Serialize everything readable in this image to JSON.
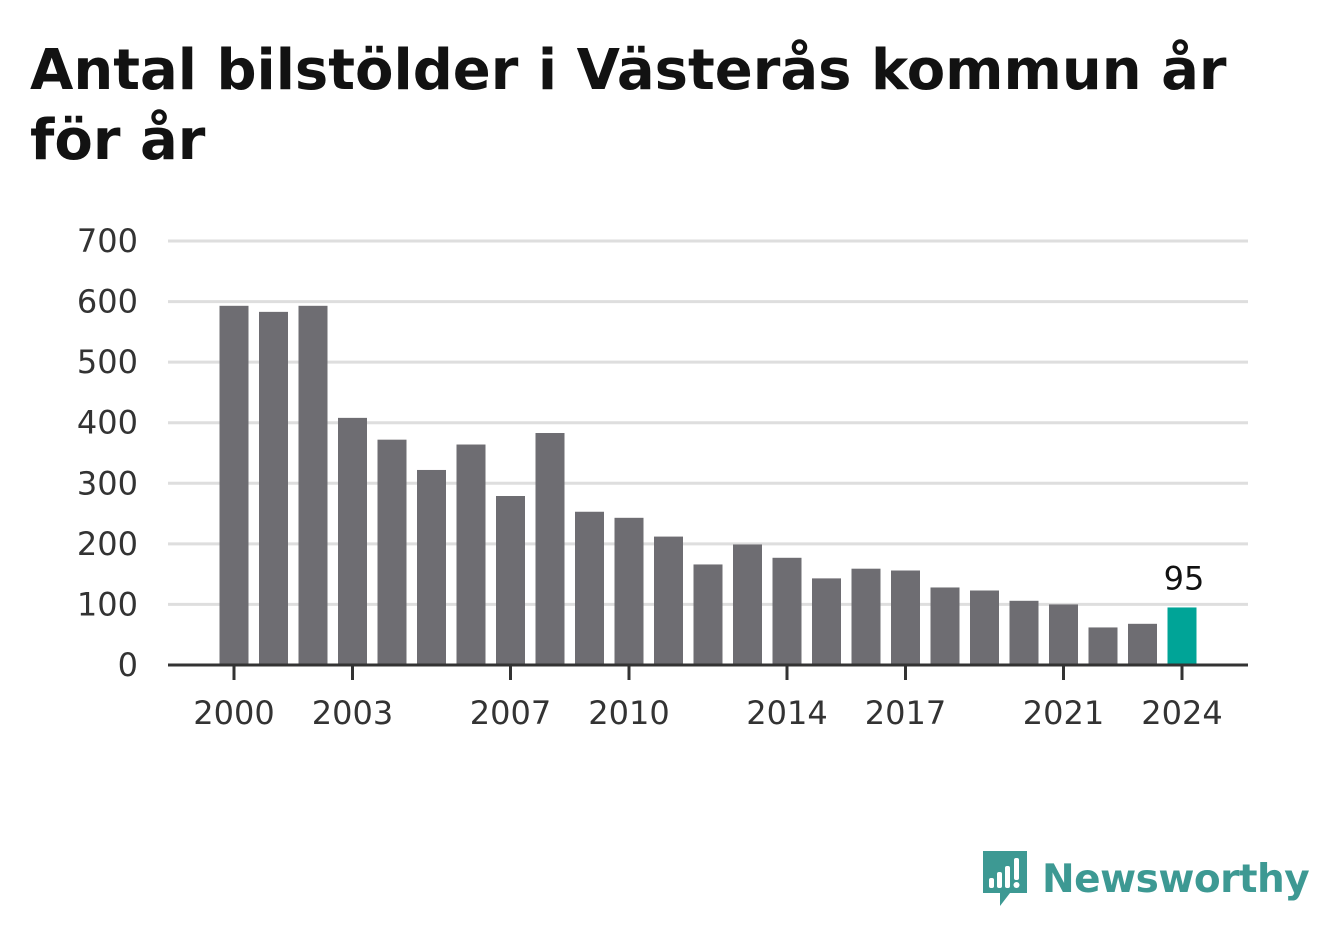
{
  "title": "Antal bilstölder i Västerås kommun år för år",
  "brand": {
    "name": "Newsworthy",
    "icon": "newsworthy-logo-icon",
    "color": "#3d9993"
  },
  "chart_data": {
    "type": "bar",
    "title": "Antal bilstölder i Västerås kommun år för år",
    "xlabel": "",
    "ylabel": "",
    "categories": [
      2000,
      2001,
      2002,
      2003,
      2004,
      2005,
      2006,
      2007,
      2008,
      2009,
      2010,
      2011,
      2012,
      2013,
      2014,
      2015,
      2016,
      2017,
      2018,
      2019,
      2020,
      2021,
      2022,
      2023,
      2024
    ],
    "values": [
      593,
      583,
      593,
      408,
      372,
      322,
      364,
      279,
      383,
      253,
      243,
      212,
      166,
      199,
      177,
      143,
      159,
      156,
      128,
      123,
      106,
      100,
      62,
      68,
      95
    ],
    "ylim": [
      0,
      700
    ],
    "yticks": [
      0,
      100,
      200,
      300,
      400,
      500,
      600,
      700
    ],
    "xticks": [
      2000,
      2003,
      2007,
      2010,
      2014,
      2017,
      2021,
      2024
    ],
    "grid": true,
    "bar_color": "#6e6d72",
    "highlight_color": "#00a497",
    "highlight_category": 2024,
    "highlight_label": "95"
  }
}
